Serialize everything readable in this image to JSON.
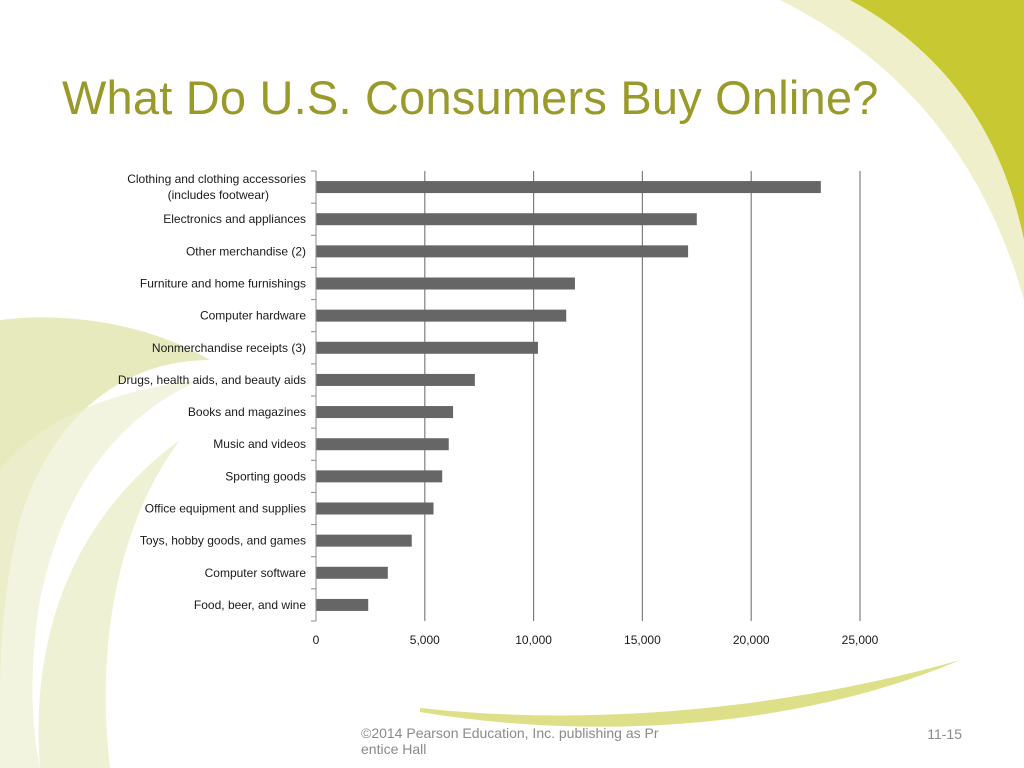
{
  "slide": {
    "title": "What Do U.S. Consumers Buy Online?",
    "footer": "©2014 Pearson Education, Inc. publishing as Prentice Hall",
    "page_number": "11-15"
  },
  "colors": {
    "title": "#9a9a2a",
    "bar": "#666666",
    "accent": "#c8c832",
    "grid": "#7f7f7f"
  },
  "chart_data": {
    "type": "bar",
    "orientation": "horizontal",
    "categories": [
      "Clothing and clothing accessories (includes footwear)",
      "Electronics and appliances",
      "Other merchandise (2)",
      "Furniture and home furnishings",
      "Computer hardware",
      "Nonmerchandise receipts (3)",
      "Drugs, health aids, and beauty aids",
      "Books and magazines",
      "Music and videos",
      "Sporting goods",
      "Office equipment and supplies",
      "Toys, hobby goods, and games",
      "Computer software",
      "Food, beer, and wine"
    ],
    "values": [
      23200,
      17500,
      17100,
      11900,
      11500,
      10200,
      7300,
      6300,
      6100,
      5800,
      5400,
      4400,
      3300,
      2400
    ],
    "xlim": [
      0,
      25000
    ],
    "xticks": [
      0,
      5000,
      10000,
      15000,
      20000,
      25000
    ],
    "xtick_labels": [
      "0",
      "5,000",
      "10,000",
      "15,000",
      "20,000",
      "25,000"
    ],
    "grid": true,
    "legend": "none"
  }
}
